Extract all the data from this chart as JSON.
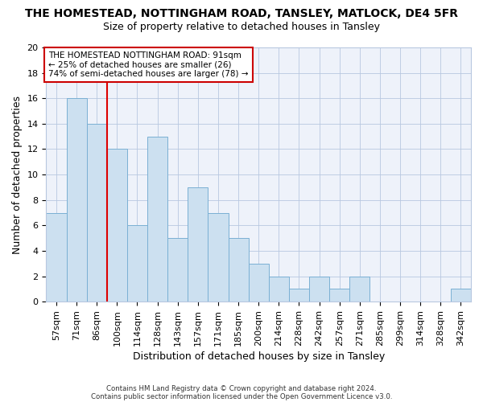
{
  "title": "THE HOMESTEAD, NOTTINGHAM ROAD, TANSLEY, MATLOCK, DE4 5FR",
  "subtitle": "Size of property relative to detached houses in Tansley",
  "xlabel": "Distribution of detached houses by size in Tansley",
  "ylabel": "Number of detached properties",
  "footnote1": "Contains HM Land Registry data © Crown copyright and database right 2024.",
  "footnote2": "Contains public sector information licensed under the Open Government Licence v3.0.",
  "annotation_line1": "THE HOMESTEAD NOTTINGHAM ROAD: 91sqm",
  "annotation_line2": "← 25% of detached houses are smaller (26)",
  "annotation_line3": "74% of semi-detached houses are larger (78) →",
  "categories": [
    "57sqm",
    "71sqm",
    "86sqm",
    "100sqm",
    "114sqm",
    "128sqm",
    "143sqm",
    "157sqm",
    "171sqm",
    "185sqm",
    "200sqm",
    "214sqm",
    "228sqm",
    "242sqm",
    "257sqm",
    "271sqm",
    "285sqm",
    "299sqm",
    "314sqm",
    "328sqm",
    "342sqm"
  ],
  "values": [
    7,
    16,
    14,
    12,
    6,
    13,
    5,
    9,
    7,
    5,
    3,
    2,
    1,
    2,
    1,
    2,
    0,
    0,
    0,
    0,
    1
  ],
  "bar_color": "#cce0f0",
  "bar_edge_color": "#7ab0d4",
  "red_line_x": 2.5,
  "ylim": [
    0,
    20
  ],
  "yticks": [
    0,
    2,
    4,
    6,
    8,
    10,
    12,
    14,
    16,
    18,
    20
  ],
  "red_line_color": "#dd0000",
  "annotation_box_edge": "#cc0000",
  "background_color": "#ffffff",
  "plot_bg_color": "#eef2fa",
  "grid_color": "#b8c8e0",
  "title_fontsize": 10,
  "subtitle_fontsize": 9,
  "axis_label_fontsize": 9,
  "tick_fontsize": 8
}
